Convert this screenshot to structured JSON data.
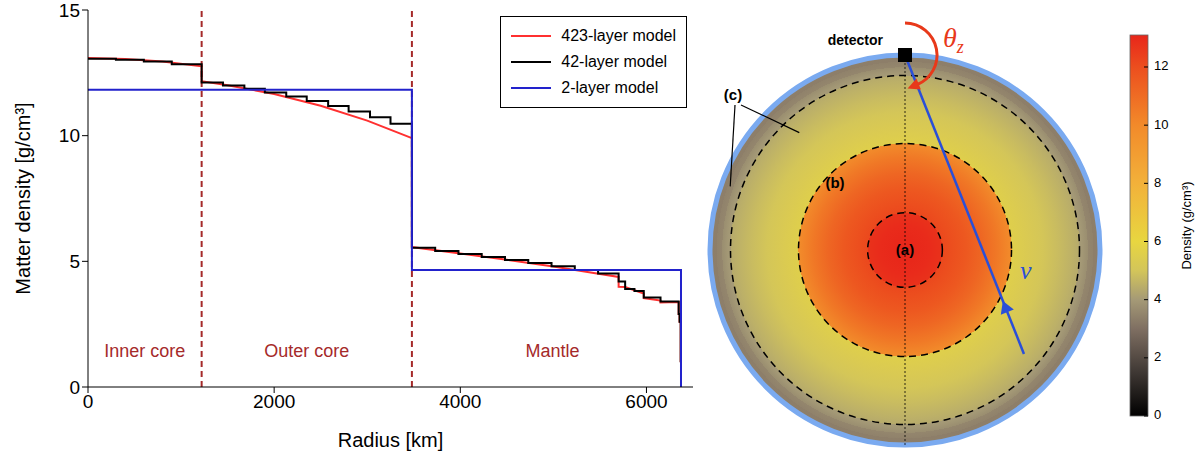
{
  "chart_data": {
    "type": "line",
    "x_label": "Radius [km]",
    "y_label": "Matter density [g/cm³]",
    "xlim": [
      0,
      6500
    ],
    "xticks": [
      0,
      2000,
      4000,
      6000
    ],
    "ylim": [
      0,
      15
    ],
    "yticks": [
      0,
      5,
      10,
      15
    ],
    "legend": "upper right",
    "boundaries": [
      1221,
      3480
    ],
    "regions": [
      "Inner core",
      "Outer core",
      "Mantle"
    ],
    "series": [
      {
        "name": "423-layer model",
        "color": "#ff3030",
        "type": "line",
        "x": [
          0,
          400,
          800,
          1221,
          1221,
          1500,
          2000,
          2500,
          3000,
          3480,
          3480,
          4000,
          4500,
          5000,
          5500,
          5701,
          5701,
          5771,
          5971,
          5971,
          6151,
          6151,
          6346,
          6346,
          6356,
          6356,
          6368,
          6368,
          6371
        ],
        "values": [
          13.09,
          13.05,
          12.95,
          12.76,
          12.17,
          12.01,
          11.66,
          11.19,
          10.6,
          9.9,
          5.57,
          5.31,
          5.06,
          4.79,
          4.5,
          4.38,
          3.99,
          3.98,
          3.72,
          3.54,
          3.44,
          3.36,
          3.38,
          2.9,
          2.9,
          2.6,
          2.6,
          1.02,
          1.02
        ]
      },
      {
        "name": "42-layer model",
        "color": "#000000",
        "type": "step",
        "x": [
          0,
          300,
          600,
          900,
          1221,
          1450,
          1680,
          1900,
          2130,
          2350,
          2580,
          2800,
          3030,
          3250,
          3480,
          3730,
          3980,
          4230,
          4480,
          4730,
          4980,
          5230,
          5480,
          5701,
          5771,
          5871,
          5971,
          6151,
          6346,
          6356,
          6368,
          6371
        ],
        "values": [
          13.06,
          13.02,
          12.95,
          12.84,
          12.12,
          12.0,
          11.87,
          11.72,
          11.56,
          11.38,
          11.18,
          10.96,
          10.73,
          10.47,
          5.54,
          5.41,
          5.29,
          5.17,
          5.05,
          4.93,
          4.8,
          4.66,
          4.52,
          4.2,
          3.9,
          3.82,
          3.56,
          3.4,
          2.9,
          2.6,
          1.02,
          1.02
        ]
      },
      {
        "name": "2-layer model",
        "color": "#2222cc",
        "type": "line",
        "x": [
          0,
          3480,
          3480,
          6371,
          6371
        ],
        "values": [
          11.83,
          11.83,
          4.66,
          4.66,
          0
        ]
      }
    ]
  },
  "diagram": {
    "detector": "detector",
    "region_labels": [
      "(a)",
      "(b)",
      "(c)"
    ],
    "boundaries": [
      1221,
      3480,
      5701
    ],
    "angle_symbol": "θ",
    "angle_subscript": "z",
    "particle": "ν",
    "colorbar": {
      "label": "Density (g/cm³)",
      "range": [
        0,
        13.1
      ],
      "ticks": [
        0,
        2,
        4,
        6,
        8,
        10,
        12
      ]
    }
  }
}
